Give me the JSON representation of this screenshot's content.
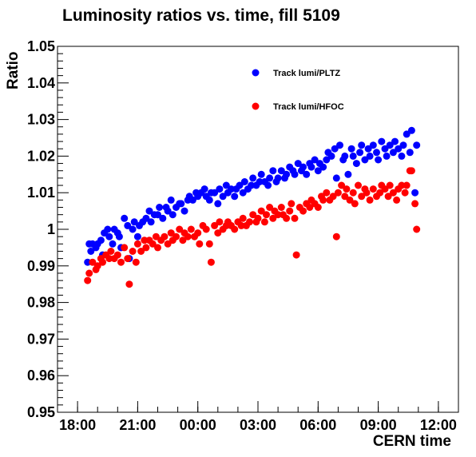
{
  "chart_data": {
    "type": "scatter",
    "title": "Luminosity ratios vs. time, fill 5109",
    "xlabel": "CERN time",
    "ylabel": "Ratio",
    "xlim": [
      "17:00",
      "13:00"
    ],
    "ylim": [
      0.95,
      1.05
    ],
    "x_tick_labels": [
      "18:00",
      "21:00",
      "00:00",
      "03:00",
      "06:00",
      "09:00",
      "12:00"
    ],
    "y_tick_labels": [
      "0.95",
      "0.96",
      "0.97",
      "0.98",
      "0.99",
      "1",
      "1.01",
      "1.02",
      "1.03",
      "1.04",
      "1.05"
    ],
    "grid": false,
    "legend_position": "top-right",
    "series": [
      {
        "name": "Track lumi/PLTZ",
        "color": "#0000ff",
        "points": [
          [
            "18:30",
            0.991
          ],
          [
            "18:35",
            0.996
          ],
          [
            "18:40",
            0.994
          ],
          [
            "18:45",
            0.996
          ],
          [
            "18:55",
            0.995
          ],
          [
            "19:00",
            0.996
          ],
          [
            "19:10",
            0.997
          ],
          [
            "19:15",
            0.993
          ],
          [
            "19:20",
            0.999
          ],
          [
            "19:30",
            1.0
          ],
          [
            "19:35",
            0.998
          ],
          [
            "19:45",
            0.996
          ],
          [
            "19:50",
            1.0
          ],
          [
            "20:00",
            0.999
          ],
          [
            "20:05",
            0.998
          ],
          [
            "20:10",
            0.995
          ],
          [
            "20:20",
            1.003
          ],
          [
            "20:30",
            1.001
          ],
          [
            "20:35",
            0.992
          ],
          [
            "20:45",
            1.0
          ],
          [
            "20:50",
            1.002
          ],
          [
            "21:00",
            0.998
          ],
          [
            "21:05",
            1.001
          ],
          [
            "21:15",
            1.002
          ],
          [
            "21:25",
            1.003
          ],
          [
            "21:35",
            1.005
          ],
          [
            "21:40",
            1.002
          ],
          [
            "21:50",
            1.004
          ],
          [
            "22:00",
            1.004
          ],
          [
            "22:05",
            1.006
          ],
          [
            "22:15",
            1.003
          ],
          [
            "22:25",
            1.006
          ],
          [
            "22:30",
            1.005
          ],
          [
            "22:40",
            1.008
          ],
          [
            "22:45",
            1.004
          ],
          [
            "22:55",
            1.006
          ],
          [
            "23:05",
            1.007
          ],
          [
            "23:10",
            1.007
          ],
          [
            "23:20",
            1.005
          ],
          [
            "23:30",
            1.008
          ],
          [
            "23:35",
            1.009
          ],
          [
            "23:45",
            1.008
          ],
          [
            "23:55",
            1.01
          ],
          [
            "00:00",
            1.009
          ],
          [
            "00:10",
            1.01
          ],
          [
            "00:20",
            1.011
          ],
          [
            "00:25",
            1.009
          ],
          [
            "00:35",
            1.008
          ],
          [
            "00:40",
            1.01
          ],
          [
            "00:50",
            1.01
          ],
          [
            "01:00",
            1.007
          ],
          [
            "01:05",
            1.011
          ],
          [
            "01:15",
            1.009
          ],
          [
            "01:25",
            1.012
          ],
          [
            "01:30",
            1.01
          ],
          [
            "01:40",
            1.011
          ],
          [
            "01:50",
            1.009
          ],
          [
            "01:55",
            1.011
          ],
          [
            "02:05",
            1.012
          ],
          [
            "02:15",
            1.01
          ],
          [
            "02:20",
            1.013
          ],
          [
            "02:30",
            1.011
          ],
          [
            "02:40",
            1.012
          ],
          [
            "02:45",
            1.014
          ],
          [
            "02:55",
            1.012
          ],
          [
            "03:05",
            1.013
          ],
          [
            "03:10",
            1.015
          ],
          [
            "03:20",
            1.013
          ],
          [
            "03:30",
            1.012
          ],
          [
            "03:35",
            1.014
          ],
          [
            "03:45",
            1.016
          ],
          [
            "03:55",
            1.013
          ],
          [
            "04:00",
            1.014
          ],
          [
            "04:10",
            1.016
          ],
          [
            "04:20",
            1.014
          ],
          [
            "04:25",
            1.015
          ],
          [
            "04:35",
            1.017
          ],
          [
            "04:45",
            1.016
          ],
          [
            "04:50",
            1.015
          ],
          [
            "05:00",
            1.018
          ],
          [
            "05:10",
            1.016
          ],
          [
            "05:15",
            1.017
          ],
          [
            "05:25",
            1.015
          ],
          [
            "05:35",
            1.018
          ],
          [
            "05:40",
            1.017
          ],
          [
            "05:50",
            1.019
          ],
          [
            "06:00",
            1.016
          ],
          [
            "06:05",
            1.018
          ],
          [
            "06:15",
            1.017
          ],
          [
            "06:25",
            1.019
          ],
          [
            "06:30",
            1.021
          ],
          [
            "06:40",
            1.02
          ],
          [
            "06:50",
            1.022
          ],
          [
            "06:55",
            1.014
          ],
          [
            "07:05",
            1.023
          ],
          [
            "07:15",
            1.019
          ],
          [
            "07:20",
            1.02
          ],
          [
            "07:30",
            1.015
          ],
          [
            "07:40",
            1.022
          ],
          [
            "07:45",
            1.02
          ],
          [
            "07:55",
            1.018
          ],
          [
            "08:05",
            1.021
          ],
          [
            "08:10",
            1.023
          ],
          [
            "08:20",
            1.019
          ],
          [
            "08:30",
            1.022
          ],
          [
            "08:35",
            1.02
          ],
          [
            "08:45",
            1.023
          ],
          [
            "08:55",
            1.021
          ],
          [
            "09:00",
            1.019
          ],
          [
            "09:10",
            1.024
          ],
          [
            "09:20",
            1.022
          ],
          [
            "09:25",
            1.02
          ],
          [
            "09:35",
            1.023
          ],
          [
            "09:45",
            1.021
          ],
          [
            "09:50",
            1.024
          ],
          [
            "10:00",
            1.022
          ],
          [
            "10:10",
            1.02
          ],
          [
            "10:15",
            1.023
          ],
          [
            "10:25",
            1.026
          ],
          [
            "10:35",
            1.021
          ],
          [
            "10:40",
            1.027
          ],
          [
            "10:50",
            1.01
          ],
          [
            "10:55",
            1.023
          ]
        ]
      },
      {
        "name": "Track lumi/HFOC",
        "color": "#ff0000",
        "points": [
          [
            "18:30",
            0.986
          ],
          [
            "18:35",
            0.988
          ],
          [
            "18:45",
            0.991
          ],
          [
            "18:55",
            0.989
          ],
          [
            "19:00",
            0.99
          ],
          [
            "19:10",
            0.992
          ],
          [
            "19:15",
            0.991
          ],
          [
            "19:25",
            0.993
          ],
          [
            "19:35",
            0.992
          ],
          [
            "19:40",
            0.994
          ],
          [
            "19:50",
            0.992
          ],
          [
            "20:00",
            0.993
          ],
          [
            "20:10",
            0.991
          ],
          [
            "20:20",
            0.995
          ],
          [
            "20:30",
            0.992
          ],
          [
            "20:35",
            0.985
          ],
          [
            "20:45",
            0.994
          ],
          [
            "20:55",
            0.991
          ],
          [
            "21:00",
            0.996
          ],
          [
            "21:10",
            0.994
          ],
          [
            "21:20",
            0.997
          ],
          [
            "21:25",
            0.995
          ],
          [
            "21:35",
            0.997
          ],
          [
            "21:45",
            0.996
          ],
          [
            "21:55",
            0.998
          ],
          [
            "22:00",
            0.995
          ],
          [
            "22:10",
            0.997
          ],
          [
            "22:20",
            0.998
          ],
          [
            "22:30",
            0.996
          ],
          [
            "22:40",
            0.999
          ],
          [
            "22:45",
            0.997
          ],
          [
            "22:55",
            0.998
          ],
          [
            "23:05",
            1.0
          ],
          [
            "23:15",
            0.997
          ],
          [
            "23:20",
            0.999
          ],
          [
            "23:30",
            0.998
          ],
          [
            "23:40",
            1.0
          ],
          [
            "23:50",
            0.998
          ],
          [
            "00:00",
            0.999
          ],
          [
            "00:05",
            0.996
          ],
          [
            "00:15",
            1.001
          ],
          [
            "00:25",
            1.0
          ],
          [
            "00:35",
            0.996
          ],
          [
            "00:40",
            0.991
          ],
          [
            "00:50",
            1.001
          ],
          [
            "01:00",
            0.999
          ],
          [
            "01:05",
            1.002
          ],
          [
            "01:15",
            1.0
          ],
          [
            "01:25",
            1.001
          ],
          [
            "01:30",
            1.002
          ],
          [
            "01:40",
            1.001
          ],
          [
            "01:50",
            1.0
          ],
          [
            "02:00",
            1.002
          ],
          [
            "02:10",
            1.001
          ],
          [
            "02:15",
            1.003
          ],
          [
            "02:25",
            1.001
          ],
          [
            "02:35",
            1.002
          ],
          [
            "02:45",
            1.004
          ],
          [
            "02:55",
            1.002
          ],
          [
            "03:00",
            1.003
          ],
          [
            "03:10",
            1.005
          ],
          [
            "03:20",
            1.002
          ],
          [
            "03:25",
            1.004
          ],
          [
            "03:35",
            1.006
          ],
          [
            "03:45",
            1.003
          ],
          [
            "03:50",
            1.005
          ],
          [
            "04:00",
            1.004
          ],
          [
            "04:10",
            1.006
          ],
          [
            "04:15",
            1.004
          ],
          [
            "04:25",
            1.003
          ],
          [
            "04:35",
            1.005
          ],
          [
            "04:40",
            1.007
          ],
          [
            "04:50",
            1.003
          ],
          [
            "04:55",
            0.993
          ],
          [
            "05:05",
            1.006
          ],
          [
            "05:15",
            1.005
          ],
          [
            "05:25",
            1.007
          ],
          [
            "05:35",
            1.006
          ],
          [
            "05:40",
            1.008
          ],
          [
            "05:50",
            1.007
          ],
          [
            "06:00",
            1.006
          ],
          [
            "06:10",
            1.009
          ],
          [
            "06:15",
            1.008
          ],
          [
            "06:25",
            1.01
          ],
          [
            "06:35",
            1.008
          ],
          [
            "06:45",
            1.009
          ],
          [
            "06:55",
            0.998
          ],
          [
            "07:00",
            1.01
          ],
          [
            "07:10",
            1.012
          ],
          [
            "07:20",
            1.009
          ],
          [
            "07:25",
            1.011
          ],
          [
            "07:35",
            1.008
          ],
          [
            "07:45",
            1.01
          ],
          [
            "07:50",
            1.007
          ],
          [
            "08:00",
            1.012
          ],
          [
            "08:10",
            1.009
          ],
          [
            "08:20",
            1.011
          ],
          [
            "08:25",
            1.01
          ],
          [
            "08:35",
            1.008
          ],
          [
            "08:45",
            1.011
          ],
          [
            "08:55",
            1.009
          ],
          [
            "09:05",
            1.01
          ],
          [
            "09:10",
            1.012
          ],
          [
            "09:20",
            1.011
          ],
          [
            "09:30",
            1.009
          ],
          [
            "09:35",
            1.012
          ],
          [
            "09:45",
            1.01
          ],
          [
            "09:55",
            1.008
          ],
          [
            "10:00",
            1.011
          ],
          [
            "10:10",
            1.012
          ],
          [
            "10:20",
            1.01
          ],
          [
            "10:25",
            1.012
          ],
          [
            "10:35",
            1.016
          ],
          [
            "10:40",
            1.016
          ],
          [
            "10:50",
            1.007
          ],
          [
            "10:55",
            1.0
          ]
        ]
      }
    ]
  }
}
